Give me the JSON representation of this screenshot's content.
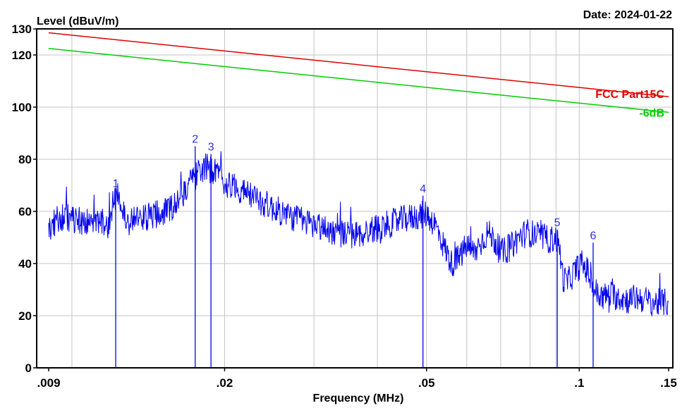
{
  "chart_data": {
    "type": "line",
    "ylabel": "Level (dBuV/m)",
    "xlabel": "Frequency (MHz)",
    "date_label": "Date: 2024-01-22",
    "x_scale": "log",
    "xlim": [
      0.009,
      0.15
    ],
    "ylim": [
      0,
      130
    ],
    "grid": true,
    "x_ticks": [
      {
        "value": 0.009,
        "label": ".009"
      },
      {
        "value": 0.02,
        "label": ".02"
      },
      {
        "value": 0.05,
        "label": ".05"
      },
      {
        "value": 0.1,
        "label": ".1"
      },
      {
        "value": 0.15,
        "label": ".15"
      }
    ],
    "y_ticks": [
      {
        "value": 0,
        "label": "0"
      },
      {
        "value": 20,
        "label": "20"
      },
      {
        "value": 40,
        "label": "40"
      },
      {
        "value": 60,
        "label": "60"
      },
      {
        "value": 80,
        "label": "80"
      },
      {
        "value": 100,
        "label": "100"
      },
      {
        "value": 120,
        "label": "120"
      },
      {
        "value": 130,
        "label": "130"
      }
    ],
    "limit_lines": [
      {
        "name": "FCC Part15C",
        "color": "#e00000",
        "x": [
          0.009,
          0.15
        ],
        "y": [
          128.5,
          104
        ]
      },
      {
        "name": "-6dB",
        "color": "#00cc00",
        "x": [
          0.009,
          0.15
        ],
        "y": [
          122.5,
          98
        ]
      }
    ],
    "series": [
      {
        "color": "#0000ee",
        "x": [
          0.009,
          0.0095,
          0.0101,
          0.0107,
          0.0113,
          0.0118,
          0.0121,
          0.0124,
          0.0128,
          0.0133,
          0.014,
          0.0148,
          0.0156,
          0.0163,
          0.017,
          0.0176,
          0.0182,
          0.0188,
          0.0195,
          0.02,
          0.0208,
          0.022,
          0.0235,
          0.025,
          0.027,
          0.029,
          0.031,
          0.033,
          0.035,
          0.037,
          0.039,
          0.042,
          0.045,
          0.0475,
          0.05,
          0.052,
          0.054,
          0.056,
          0.058,
          0.06,
          0.062,
          0.064,
          0.066,
          0.068,
          0.07,
          0.073,
          0.076,
          0.079,
          0.082,
          0.085,
          0.088,
          0.09,
          0.0915,
          0.093,
          0.095,
          0.098,
          0.101,
          0.104,
          0.107,
          0.11,
          0.115,
          0.12,
          0.125,
          0.13,
          0.135,
          0.14,
          0.145,
          0.15
        ],
        "y": [
          53,
          58,
          57,
          56,
          56,
          55,
          64,
          66,
          56,
          57,
          58,
          59,
          61,
          65,
          70,
          74,
          77,
          76,
          74,
          71,
          70,
          67,
          64,
          61,
          58,
          56,
          54,
          52,
          51,
          51,
          53,
          55,
          57,
          58,
          59,
          55,
          47,
          40,
          42,
          47,
          44,
          48,
          52,
          49,
          44,
          46,
          50,
          52,
          51,
          50,
          49,
          50,
          45,
          34,
          33,
          37,
          40,
          37,
          30,
          27,
          28,
          27,
          26,
          27,
          26,
          25,
          25,
          25
        ]
      }
    ],
    "markers": [
      {
        "label": "1",
        "x": 0.0122,
        "y": 68
      },
      {
        "label": "2",
        "x": 0.0175,
        "y": 85
      },
      {
        "label": "3",
        "x": 0.0188,
        "y": 82
      },
      {
        "label": "4",
        "x": 0.0492,
        "y": 66
      },
      {
        "label": "5",
        "x": 0.0905,
        "y": 53
      },
      {
        "label": "6",
        "x": 0.1065,
        "y": 48
      }
    ]
  }
}
